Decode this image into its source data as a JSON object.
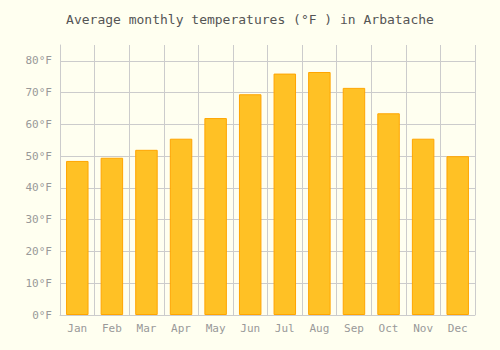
{
  "chart_data": {
    "type": "bar",
    "title": "Average monthly temperatures (°F ) in Arbatache",
    "categories": [
      "Jan",
      "Feb",
      "Mar",
      "Apr",
      "May",
      "Jun",
      "Jul",
      "Aug",
      "Sep",
      "Oct",
      "Nov",
      "Dec"
    ],
    "values": [
      48.5,
      49.5,
      52.0,
      55.5,
      62.0,
      69.5,
      76.0,
      76.5,
      71.5,
      63.5,
      55.5,
      50.0
    ],
    "color": "#FFC125",
    "ylim": [
      0,
      85
    ],
    "yticks": [
      {
        "value": 0,
        "label": "0°F"
      },
      {
        "value": 10,
        "label": "10°F"
      },
      {
        "value": 20,
        "label": "20°F"
      },
      {
        "value": 30,
        "label": "30°F"
      },
      {
        "value": 40,
        "label": "40°F"
      },
      {
        "value": 50,
        "label": "50°F"
      },
      {
        "value": 60,
        "label": "60°F"
      },
      {
        "value": 70,
        "label": "70°F"
      },
      {
        "value": 80,
        "label": "80°F"
      }
    ],
    "grid": true
  }
}
